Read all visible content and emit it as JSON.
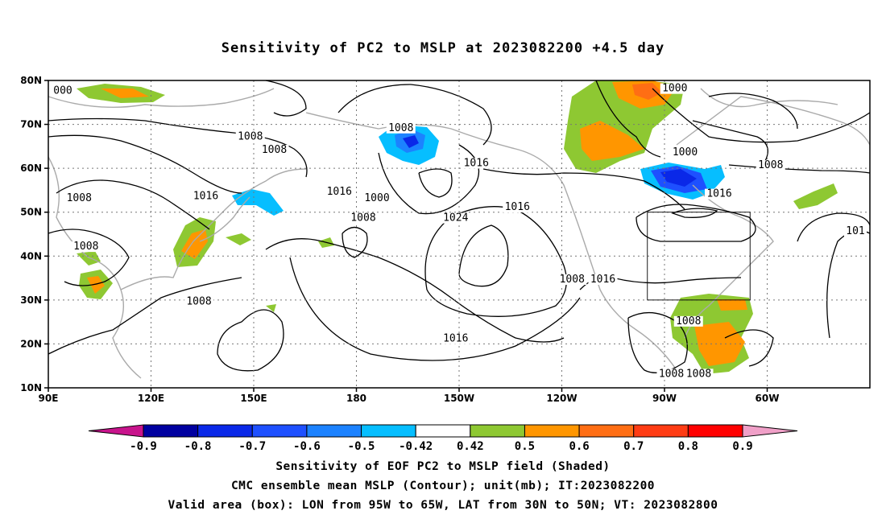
{
  "title": "Sensitivity of PC2 to MSLP at 2023082200 +4.5 day",
  "map": {
    "lat_labels": [
      "80N",
      "70N",
      "60N",
      "50N",
      "40N",
      "30N",
      "20N",
      "10N"
    ],
    "lon_labels": [
      "90E",
      "120E",
      "150E",
      "180",
      "150W",
      "120W",
      "90W",
      "60W"
    ],
    "lon_range": [
      90,
      330
    ],
    "lat_range": [
      10,
      80
    ],
    "valid_box": {
      "lon": [
        265,
        295
      ],
      "lat": [
        30,
        50
      ]
    },
    "contour_labels": [
      {
        "text": "000",
        "lon": 92,
        "lat": 77
      },
      {
        "text": "1008",
        "lon": 149,
        "lat": 66.5
      },
      {
        "text": "1008",
        "lon": 156,
        "lat": 63.5
      },
      {
        "text": "1008",
        "lon": 99,
        "lat": 52.5
      },
      {
        "text": "1016",
        "lon": 136,
        "lat": 53
      },
      {
        "text": "1008",
        "lon": 101,
        "lat": 41.5
      },
      {
        "text": "1008",
        "lon": 134,
        "lat": 29
      },
      {
        "text": "1008",
        "lon": 193,
        "lat": 68.5
      },
      {
        "text": "1016",
        "lon": 175,
        "lat": 54
      },
      {
        "text": "1000",
        "lon": 186,
        "lat": 52.5
      },
      {
        "text": "1008",
        "lon": 182,
        "lat": 48
      },
      {
        "text": "1016",
        "lon": 215,
        "lat": 60.5
      },
      {
        "text": "1016",
        "lon": 227,
        "lat": 50.5
      },
      {
        "text": "1024",
        "lon": 209,
        "lat": 48
      },
      {
        "text": "1016",
        "lon": 209,
        "lat": 20.5
      },
      {
        "text": "1008",
        "lon": 243,
        "lat": 34
      },
      {
        "text": "1016",
        "lon": 252,
        "lat": 34
      },
      {
        "text": "1000",
        "lon": 273,
        "lat": 77.5
      },
      {
        "text": "1000",
        "lon": 276,
        "lat": 63
      },
      {
        "text": "1008",
        "lon": 301,
        "lat": 60
      },
      {
        "text": "1016",
        "lon": 286,
        "lat": 53.5
      },
      {
        "text": "101",
        "lon": 328,
        "lat": 45
      },
      {
        "text": "1008",
        "lon": 277,
        "lat": 24.5
      },
      {
        "text": "1008",
        "lon": 272,
        "lat": 12.5
      },
      {
        "text": "1008",
        "lon": 280,
        "lat": 12.5
      }
    ]
  },
  "colorbar": {
    "labels": [
      "-0.9",
      "-0.8",
      "-0.7",
      "-0.6",
      "-0.5",
      "-0.42",
      "0.42",
      "0.5",
      "0.6",
      "0.7",
      "0.8",
      "0.9"
    ],
    "colors": [
      "#0000a0",
      "#0a28e8",
      "#1e50ff",
      "#1c82ff",
      "#06beff",
      "#ffffff",
      "#8ec832",
      "#ff9600",
      "#ff6e14",
      "#ff3c14",
      "#ff0000"
    ],
    "low_arrow_color": "#c8148c",
    "high_arrow_color": "#f0a0c8"
  },
  "captions": [
    "Sensitivity of EOF PC2 to MSLP field (Shaded)",
    "CMC ensemble mean MSLP (Contour); unit(mb); IT:2023082200",
    "Valid area (box): LON from 95W to 65W, LAT from 30N to 50N; VT: 2023082800"
  ]
}
